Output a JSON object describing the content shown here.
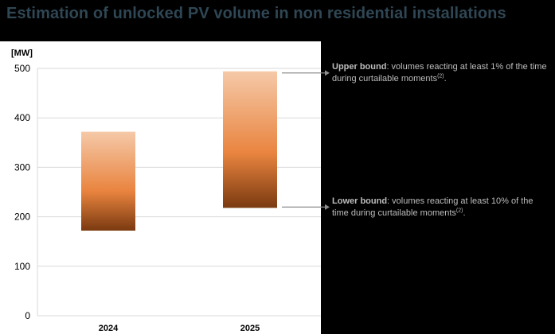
{
  "page": {
    "title": "Estimation of unlocked PV volume in non residential installations"
  },
  "annotations": {
    "upper": {
      "label": "Upper bound",
      "text": ": volumes reacting at least 1% of the time during curtailable moments",
      "footnote": "(2)",
      "end": "."
    },
    "lower": {
      "label": "Lower bound",
      "text": ": volumes reacting at least 10% of the time during curtailable moments",
      "footnote": "(2)",
      "end": "."
    }
  },
  "colors": {
    "bar_top": "#f5c9a8",
    "bar_mid": "#e9843f",
    "bar_bottom": "#7a3a10",
    "grid": "#d9d9d9",
    "axis_text": "#000000",
    "connector": "#8c8c8c"
  },
  "chart_data": {
    "type": "bar",
    "subtype": "floating-range",
    "categories": [
      "2024",
      "2025"
    ],
    "series": [
      {
        "low": [
          172,
          218
        ],
        "high": [
          372,
          494
        ]
      }
    ],
    "ylabel": "[MW]",
    "ylim": [
      0,
      500
    ],
    "yticks": [
      0,
      100,
      200,
      300,
      400,
      500
    ],
    "grid": true,
    "legend": "none"
  }
}
